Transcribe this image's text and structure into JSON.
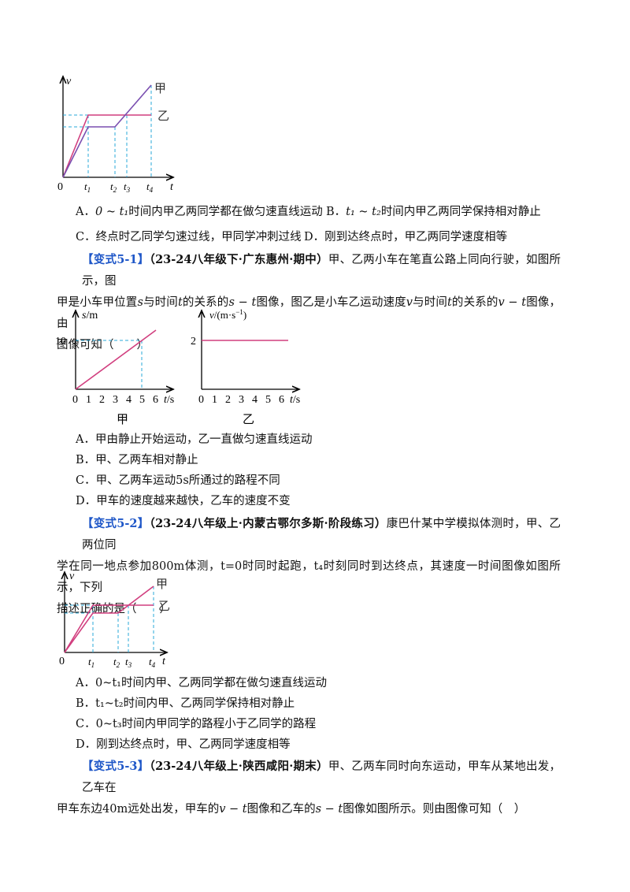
{
  "graph1": {
    "v_label": "v",
    "t_label": "t",
    "origin": "0",
    "t1": "t",
    "t1_sub": "1",
    "t2": "t",
    "t2_sub": "2",
    "t3": "t",
    "t3_sub": "3",
    "t4": "t",
    "t4_sub": "4",
    "jia": "甲",
    "yi": "乙"
  },
  "q1_options": {
    "a_prefix": "A．",
    "a_range": "0 ~ t₁",
    "a_text": "时间内甲乙两同学都在做匀速直线运动",
    "b_prefix": "B．",
    "b_range": "t₁ ~ t₂",
    "b_text": "时间内甲乙两同学保持相对静止",
    "c": "C．终点时乙同学匀速过线，甲同学冲刺过线",
    "d": "D．刚到达终点时，甲乙两同学速度相等"
  },
  "q51": {
    "tag": "【变式5-1】",
    "source": "（23-24八年级下·广东惠州·期中）",
    "text_line1": "甲、乙两小车在笔直公路上同向行驶，如图所示，图",
    "text_line2_a": "甲是小车甲位置",
    "text_line2_s": "s",
    "text_line2_b": "与时间",
    "text_line2_t": "t",
    "text_line2_c": "的关系的",
    "text_line2_st": "s − t",
    "text_line2_d": "图像，图乙是小车乙运动速度",
    "text_line2_v": "v",
    "text_line2_e": "与时间",
    "text_line2_t2": "t",
    "text_line2_f": "的关系的",
    "text_line2_vt": "v − t",
    "text_line2_g": "图像，由",
    "text_line3": "图像可知（　　）",
    "graph_jia": {
      "ylabel": "s/m",
      "xlabel": "t/s",
      "y_tick": "10",
      "x_ticks": [
        "0",
        "1",
        "2",
        "3",
        "4",
        "5",
        "6"
      ],
      "caption": "甲"
    },
    "graph_yi": {
      "ylabel": "v/(m·s⁻¹)",
      "xlabel": "t/s",
      "y_tick": "2",
      "x_ticks": [
        "0",
        "1",
        "2",
        "3",
        "4",
        "5",
        "6"
      ],
      "caption": "乙"
    },
    "options": [
      "A．甲由静止开始运动，乙一直做匀速直线运动",
      "B．甲、乙两车相对静止",
      "C．甲、乙两车运动5s所通过的路程不同",
      "D．甲车的速度越来越快，乙车的速度不变"
    ]
  },
  "q52": {
    "tag": "【变式5-2】",
    "source": "（23-24八年级上·内蒙古鄂尔多斯·阶段练习）",
    "text_line1": "康巴什某中学模拟体测时，甲、乙两位同",
    "text_line2": "学在同一地点参加800m体测，t=0时同时起跑，t₄时刻同时到达终点，其速度一时间图像如图所示，下列",
    "text_line3": "描述正确的是（　　）",
    "options": [
      "A．0~t₁时间内甲、乙两同学都在做匀速直线运动",
      "B．t₁~t₂时间内甲、乙两同学保持相对静止",
      "C．0~t₃时间内甲同学的路程小于乙同学的路程",
      "D．刚到达终点时，甲、乙两同学速度相等"
    ]
  },
  "q53": {
    "tag": "【变式5-3】",
    "source": "（23-24八年级上·陕西咸阳·期末）",
    "text_line1": "甲、乙两车同时向东运动，甲车从某地出发，乙车在",
    "text_line2_a": "甲车东边40m远处出发，甲车的",
    "text_line2_vt": "v − t",
    "text_line2_b": "图像和乙车的",
    "text_line2_st": "s − t",
    "text_line2_c": "图像如图所示。则由图像可知（　）"
  },
  "colors": {
    "pink": "#d13f7f",
    "dash": "#2aa8d8",
    "tag_blue": "#1f57c8"
  }
}
